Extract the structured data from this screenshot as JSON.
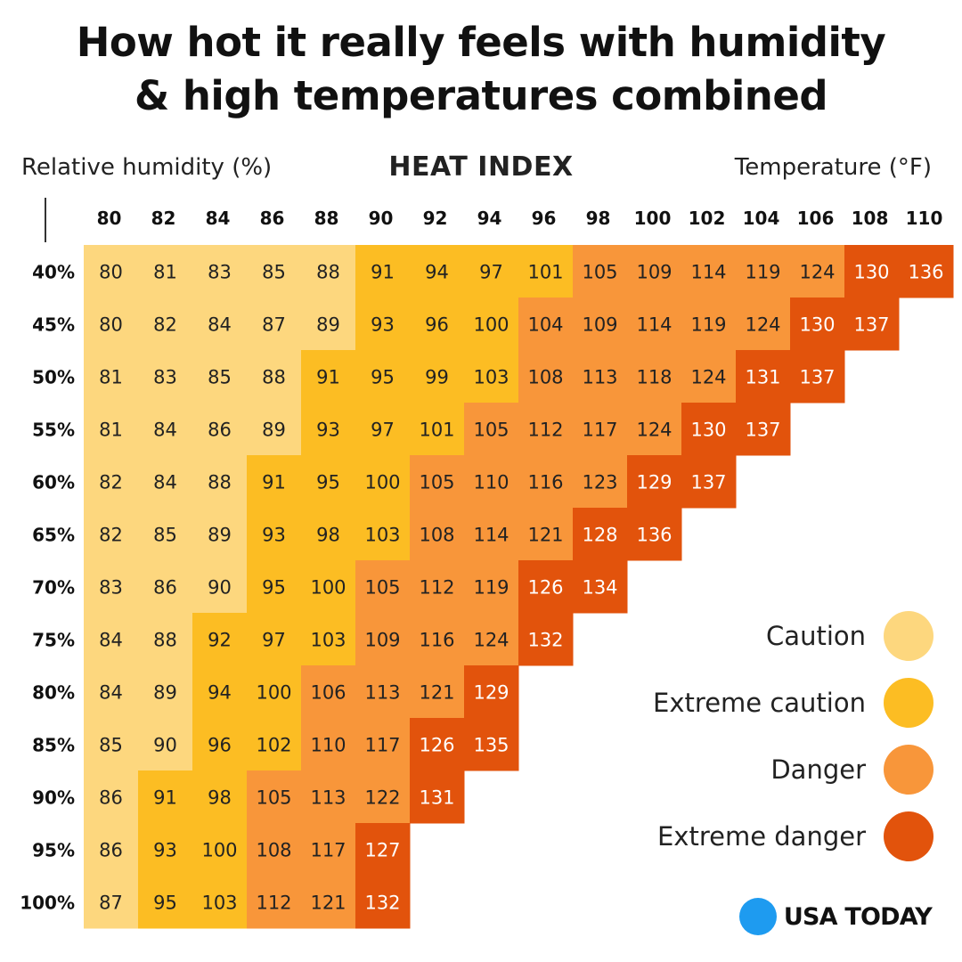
{
  "title_line1": "How hot it really feels with humidity",
  "title_line2": "& high temperatures combined",
  "header": {
    "left": "Relative humidity (%)",
    "center": "HEAT INDEX",
    "right": "Temperature (°F)"
  },
  "colors": {
    "caution": "#FDD77E",
    "extreme_caution": "#FCBD23",
    "danger": "#F8963A",
    "extreme_danger": "#E2530C"
  },
  "legend": [
    {
      "label": "Caution",
      "key": "caution",
      "color": "#FDD77E"
    },
    {
      "label": "Extreme caution",
      "key": "extreme_caution",
      "color": "#FCBD23"
    },
    {
      "label": "Danger",
      "key": "danger",
      "color": "#F8963A"
    },
    {
      "label": "Extreme danger",
      "key": "extreme_danger",
      "color": "#E2530C"
    }
  ],
  "brand": {
    "name": "USA TODAY",
    "dot_color": "#1E9BF0"
  },
  "chart_data": {
    "type": "heatmap",
    "xlabel": "Temperature (°F)",
    "ylabel": "Relative humidity (%)",
    "x": [
      "80",
      "82",
      "84",
      "86",
      "88",
      "90",
      "92",
      "94",
      "96",
      "98",
      "100",
      "102",
      "104",
      "106",
      "108",
      "110"
    ],
    "y": [
      "40%",
      "45%",
      "50%",
      "55%",
      "60%",
      "65%",
      "70%",
      "75%",
      "80%",
      "85%",
      "90%",
      "95%",
      "100%"
    ],
    "values": [
      [
        80,
        81,
        83,
        85,
        88,
        91,
        94,
        97,
        101,
        105,
        109,
        114,
        119,
        124,
        130,
        136
      ],
      [
        80,
        82,
        84,
        87,
        89,
        93,
        96,
        100,
        104,
        109,
        114,
        119,
        124,
        130,
        137
      ],
      [
        81,
        83,
        85,
        88,
        91,
        95,
        99,
        103,
        108,
        113,
        118,
        124,
        131,
        137
      ],
      [
        81,
        84,
        86,
        89,
        93,
        97,
        101,
        105,
        112,
        117,
        124,
        130,
        137
      ],
      [
        82,
        84,
        88,
        91,
        95,
        100,
        105,
        110,
        116,
        123,
        129,
        137
      ],
      [
        82,
        85,
        89,
        93,
        98,
        103,
        108,
        114,
        121,
        128,
        136
      ],
      [
        83,
        86,
        90,
        95,
        100,
        105,
        112,
        119,
        126,
        134
      ],
      [
        84,
        88,
        92,
        97,
        103,
        109,
        116,
        124,
        132
      ],
      [
        84,
        89,
        94,
        100,
        106,
        113,
        121,
        129
      ],
      [
        85,
        90,
        96,
        102,
        110,
        117,
        126,
        135
      ],
      [
        86,
        91,
        98,
        105,
        113,
        122,
        131
      ],
      [
        86,
        93,
        100,
        108,
        117,
        127
      ],
      [
        87,
        95,
        103,
        112,
        121,
        132
      ]
    ],
    "categories": [
      [
        "caution",
        "caution",
        "caution",
        "caution",
        "caution",
        "extreme_caution",
        "extreme_caution",
        "extreme_caution",
        "extreme_caution",
        "danger",
        "danger",
        "danger",
        "danger",
        "danger",
        "extreme_danger",
        "extreme_danger"
      ],
      [
        "caution",
        "caution",
        "caution",
        "caution",
        "caution",
        "extreme_caution",
        "extreme_caution",
        "extreme_caution",
        "danger",
        "danger",
        "danger",
        "danger",
        "danger",
        "extreme_danger",
        "extreme_danger"
      ],
      [
        "caution",
        "caution",
        "caution",
        "caution",
        "extreme_caution",
        "extreme_caution",
        "extreme_caution",
        "extreme_caution",
        "danger",
        "danger",
        "danger",
        "danger",
        "extreme_danger",
        "extreme_danger"
      ],
      [
        "caution",
        "caution",
        "caution",
        "caution",
        "extreme_caution",
        "extreme_caution",
        "extreme_caution",
        "danger",
        "danger",
        "danger",
        "danger",
        "extreme_danger",
        "extreme_danger"
      ],
      [
        "caution",
        "caution",
        "caution",
        "extreme_caution",
        "extreme_caution",
        "extreme_caution",
        "danger",
        "danger",
        "danger",
        "danger",
        "extreme_danger",
        "extreme_danger"
      ],
      [
        "caution",
        "caution",
        "caution",
        "extreme_caution",
        "extreme_caution",
        "extreme_caution",
        "danger",
        "danger",
        "danger",
        "extreme_danger",
        "extreme_danger"
      ],
      [
        "caution",
        "caution",
        "caution",
        "extreme_caution",
        "extreme_caution",
        "danger",
        "danger",
        "danger",
        "extreme_danger",
        "extreme_danger"
      ],
      [
        "caution",
        "caution",
        "extreme_caution",
        "extreme_caution",
        "extreme_caution",
        "danger",
        "danger",
        "danger",
        "extreme_danger"
      ],
      [
        "caution",
        "caution",
        "extreme_caution",
        "extreme_caution",
        "danger",
        "danger",
        "danger",
        "extreme_danger"
      ],
      [
        "caution",
        "caution",
        "extreme_caution",
        "extreme_caution",
        "danger",
        "danger",
        "extreme_danger",
        "extreme_danger"
      ],
      [
        "caution",
        "extreme_caution",
        "extreme_caution",
        "danger",
        "danger",
        "danger",
        "extreme_danger"
      ],
      [
        "caution",
        "extreme_caution",
        "extreme_caution",
        "danger",
        "danger",
        "extreme_danger"
      ],
      [
        "caution",
        "extreme_caution",
        "extreme_caution",
        "danger",
        "danger",
        "extreme_danger"
      ]
    ]
  }
}
